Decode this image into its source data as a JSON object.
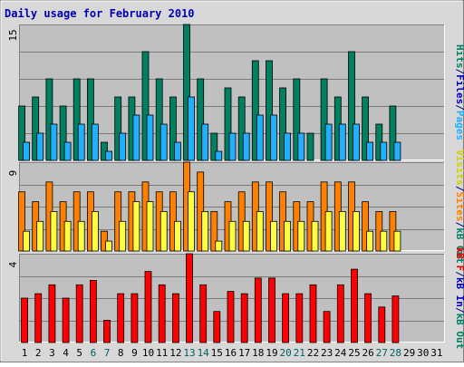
{
  "chart_data": {
    "type": "bar",
    "title": "Daily usage for February 2010",
    "days": [
      "1",
      "2",
      "3",
      "4",
      "5",
      "6",
      "7",
      "8",
      "9",
      "10",
      "11",
      "12",
      "13",
      "14",
      "15",
      "16",
      "17",
      "18",
      "19",
      "20",
      "21",
      "22",
      "23",
      "24",
      "25",
      "26",
      "27",
      "28",
      "29",
      "30",
      "31"
    ],
    "weekend_days": [
      "6",
      "7",
      "13",
      "14",
      "20",
      "21",
      "27",
      "28"
    ],
    "panels": [
      {
        "max_label": "15",
        "ymax": 15,
        "axis_labels": [
          {
            "text": "Hits",
            "color": "#008060"
          },
          {
            "text": "/",
            "color": "#000080"
          },
          {
            "text": "Files",
            "color": "#0000c0"
          },
          {
            "text": "/",
            "color": "#000080"
          },
          {
            "text": "Pages",
            "color": "#20b0ff"
          }
        ],
        "series": [
          {
            "name": "Hits",
            "color": "#008060",
            "values": [
              6,
              7,
              9,
              6,
              9,
              9,
              2,
              7,
              7,
              12,
              9,
              7,
              15,
              9,
              3,
              8,
              7,
              11,
              11,
              8,
              9,
              3,
              9,
              7,
              12,
              7,
              4,
              6,
              null,
              null,
              null
            ]
          },
          {
            "name": "Files",
            "color": "#20b0ff",
            "values": [
              2,
              3,
              4,
              2,
              4,
              4,
              1,
              3,
              5,
              5,
              4,
              2,
              7,
              4,
              1,
              3,
              3,
              5,
              5,
              3,
              3,
              0,
              4,
              4,
              4,
              2,
              2,
              2,
              null,
              null,
              null
            ]
          }
        ]
      },
      {
        "max_label": "9",
        "ymax": 9,
        "axis_labels": [
          {
            "text": "Visits",
            "color": "#d0d000"
          },
          {
            "text": "/",
            "color": "#000080"
          },
          {
            "text": "Sites",
            "color": "#ff8000"
          },
          {
            "text": "/",
            "color": "#000080"
          },
          {
            "text": "kB Out",
            "color": "#008060"
          }
        ],
        "series": [
          {
            "name": "Sites",
            "color": "#ff8000",
            "values": [
              6,
              5,
              7,
              5,
              6,
              6,
              2,
              6,
              6,
              7,
              6,
              6,
              9,
              8,
              4,
              5,
              6,
              7,
              7,
              6,
              5,
              5,
              7,
              7,
              7,
              5,
              4,
              4,
              null,
              null,
              null
            ]
          },
          {
            "name": "Visits",
            "color": "#ffff40",
            "values": [
              2,
              3,
              4,
              3,
              3,
              4,
              1,
              3,
              5,
              5,
              4,
              3,
              6,
              4,
              1,
              3,
              3,
              4,
              3,
              3,
              3,
              3,
              4,
              4,
              4,
              2,
              2,
              2,
              null,
              null,
              null
            ]
          }
        ]
      },
      {
        "max_label": "4",
        "ymax": 4,
        "axis_labels": [
          {
            "text": "kB F",
            "color": "#e00000"
          },
          {
            "text": "/",
            "color": "#000080"
          },
          {
            "text": "kB In",
            "color": "#0000c0"
          },
          {
            "text": "/",
            "color": "#000080"
          },
          {
            "text": "kB Out",
            "color": "#008060"
          }
        ],
        "series": [
          {
            "name": "kB F",
            "color": "#ff0000",
            "values": [
              2,
              2.2,
              2.6,
              2,
              2.6,
              2.8,
              1,
              2.2,
              2.2,
              3.2,
              2.6,
              2.2,
              4,
              2.6,
              1.4,
              2.3,
              2.2,
              2.9,
              2.9,
              2.2,
              2.2,
              2.6,
              1.4,
              2.6,
              3.3,
              2.2,
              1.6,
              2.1,
              null,
              null,
              null
            ]
          }
        ]
      }
    ]
  },
  "colors": {
    "frame_bg": "#d8d8d8",
    "plot_bg": "#c0c0c0",
    "grid": "#7a7a7a",
    "title": "#0000b0",
    "weekday_label": "#000000",
    "weekend_label": "#006060"
  }
}
